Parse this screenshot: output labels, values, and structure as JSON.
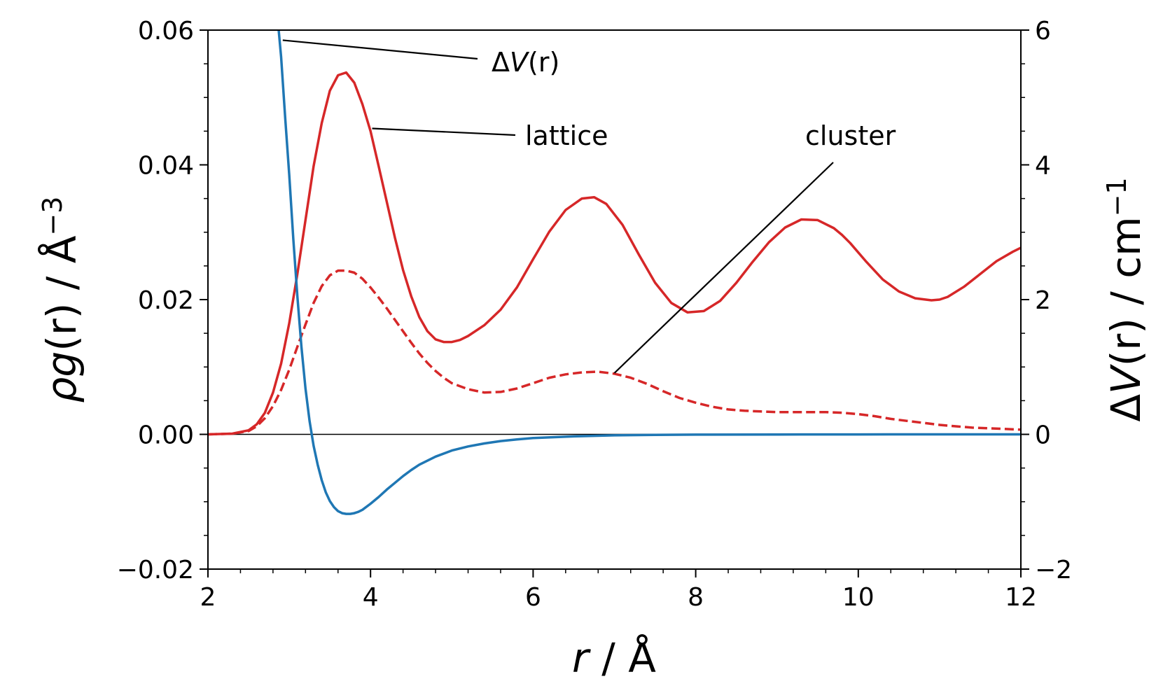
{
  "chart_data": {
    "type": "line",
    "title": "",
    "x_axis": {
      "label_var": "r",
      "label_unit": " / Å",
      "range": [
        2,
        12
      ],
      "ticks": [
        2,
        4,
        6,
        8,
        10,
        12
      ],
      "tick_labels": [
        "2",
        "4",
        "6",
        "8",
        "10",
        "12"
      ]
    },
    "y_left_axis": {
      "label_rho": "ρ",
      "label_g": "g",
      "label_r": "(r)",
      "label_unit": " / Å",
      "label_sup": "−3",
      "range": [
        -0.02,
        0.06
      ],
      "ticks": [
        -0.02,
        0.0,
        0.02,
        0.04,
        0.06
      ],
      "tick_labels": [
        "−0.02",
        "0.00",
        "0.02",
        "0.04",
        "0.06"
      ]
    },
    "y_right_axis": {
      "label_delta": "Δ",
      "label_v": "V",
      "label_r": "(r)",
      "label_unit": " / cm",
      "label_sup": "−1",
      "range": [
        -2,
        6
      ],
      "ticks": [
        -2,
        0,
        2,
        4,
        6
      ],
      "tick_labels": [
        "−2",
        "0",
        "2",
        "4",
        "6"
      ]
    },
    "grid": false,
    "zero_line": true,
    "series": [
      {
        "name": "lattice",
        "axis": "left",
        "style": "solid",
        "color": "#d62728",
        "x": [
          2.0,
          2.3,
          2.5,
          2.6,
          2.7,
          2.8,
          2.9,
          3.0,
          3.1,
          3.2,
          3.3,
          3.4,
          3.5,
          3.6,
          3.7,
          3.8,
          3.9,
          4.0,
          4.1,
          4.2,
          4.3,
          4.4,
          4.5,
          4.6,
          4.7,
          4.8,
          4.9,
          5.0,
          5.1,
          5.2,
          5.4,
          5.6,
          5.8,
          6.0,
          6.2,
          6.4,
          6.6,
          6.75,
          6.9,
          7.1,
          7.3,
          7.5,
          7.7,
          7.9,
          8.1,
          8.3,
          8.5,
          8.7,
          8.9,
          9.1,
          9.3,
          9.5,
          9.7,
          9.8,
          9.9,
          10.1,
          10.3,
          10.5,
          10.7,
          10.9,
          11.0,
          11.1,
          11.3,
          11.5,
          11.7,
          11.9,
          12.0
        ],
        "y": [
          0.0,
          0.0001,
          0.0006,
          0.0015,
          0.0032,
          0.0062,
          0.0105,
          0.0165,
          0.0238,
          0.0318,
          0.0398,
          0.0462,
          0.051,
          0.0533,
          0.0537,
          0.0522,
          0.049,
          0.045,
          0.0398,
          0.0345,
          0.0292,
          0.0244,
          0.0205,
          0.0174,
          0.0153,
          0.0141,
          0.0137,
          0.0137,
          0.014,
          0.0146,
          0.0162,
          0.0185,
          0.0218,
          0.026,
          0.0301,
          0.0333,
          0.035,
          0.0352,
          0.0342,
          0.0311,
          0.0267,
          0.0225,
          0.0195,
          0.0181,
          0.0183,
          0.0198,
          0.0225,
          0.0256,
          0.0285,
          0.0307,
          0.0319,
          0.0318,
          0.0306,
          0.0296,
          0.0284,
          0.0256,
          0.023,
          0.0212,
          0.0202,
          0.0199,
          0.02,
          0.0204,
          0.0219,
          0.0238,
          0.0257,
          0.0271,
          0.0277
        ]
      },
      {
        "name": "cluster",
        "axis": "left",
        "style": "dashed",
        "color": "#d62728",
        "x": [
          2.0,
          2.3,
          2.5,
          2.6,
          2.7,
          2.8,
          2.9,
          3.0,
          3.1,
          3.2,
          3.3,
          3.4,
          3.5,
          3.6,
          3.7,
          3.8,
          3.9,
          4.0,
          4.1,
          4.2,
          4.3,
          4.4,
          4.5,
          4.6,
          4.7,
          4.8,
          4.9,
          5.0,
          5.2,
          5.4,
          5.6,
          5.8,
          6.0,
          6.2,
          6.4,
          6.6,
          6.8,
          7.0,
          7.2,
          7.4,
          7.6,
          7.8,
          8.0,
          8.2,
          8.4,
          8.6,
          8.8,
          9.0,
          9.2,
          9.4,
          9.6,
          9.8,
          10.0,
          10.2,
          10.4,
          10.6,
          10.8,
          11.0,
          11.2,
          11.4,
          11.6,
          11.8,
          12.0
        ],
        "y": [
          0.0,
          0.0001,
          0.0005,
          0.0012,
          0.0024,
          0.0042,
          0.0066,
          0.0096,
          0.013,
          0.0163,
          0.0195,
          0.022,
          0.0236,
          0.0243,
          0.0243,
          0.024,
          0.0231,
          0.0218,
          0.0203,
          0.0187,
          0.017,
          0.0153,
          0.0136,
          0.012,
          0.0106,
          0.0094,
          0.0084,
          0.0076,
          0.0067,
          0.0062,
          0.0063,
          0.0068,
          0.0076,
          0.0084,
          0.0089,
          0.0092,
          0.0093,
          0.009,
          0.0084,
          0.0075,
          0.0064,
          0.0054,
          0.0047,
          0.0041,
          0.0037,
          0.0035,
          0.0034,
          0.0033,
          0.0033,
          0.0033,
          0.0033,
          0.0032,
          0.003,
          0.0027,
          0.0023,
          0.002,
          0.0017,
          0.0014,
          0.0012,
          0.001,
          0.0009,
          0.0008,
          0.0007
        ]
      },
      {
        "name": "ΔV(r)",
        "axis": "right",
        "style": "solid",
        "color": "#1f77b4",
        "x": [
          2.87,
          2.9,
          2.95,
          3.0,
          3.05,
          3.1,
          3.15,
          3.2,
          3.25,
          3.3,
          3.35,
          3.4,
          3.45,
          3.5,
          3.55,
          3.6,
          3.65,
          3.7,
          3.75,
          3.8,
          3.85,
          3.9,
          4.0,
          4.1,
          4.2,
          4.3,
          4.4,
          4.5,
          4.6,
          4.8,
          5.0,
          5.2,
          5.4,
          5.6,
          5.8,
          6.0,
          6.5,
          7.0,
          7.5,
          8.0,
          9.0,
          10.0,
          11.0,
          12.0
        ],
        "y": [
          6.0,
          5.6,
          4.7,
          3.85,
          2.9,
          2.05,
          1.3,
          0.68,
          0.2,
          -0.17,
          -0.45,
          -0.68,
          -0.86,
          -0.99,
          -1.08,
          -1.14,
          -1.17,
          -1.18,
          -1.18,
          -1.17,
          -1.15,
          -1.12,
          -1.03,
          -0.93,
          -0.82,
          -0.72,
          -0.62,
          -0.53,
          -0.45,
          -0.33,
          -0.24,
          -0.18,
          -0.135,
          -0.1,
          -0.075,
          -0.055,
          -0.03,
          -0.015,
          -0.008,
          -0.004,
          -0.002,
          -0.001,
          0.0,
          0.0
        ]
      }
    ],
    "annotations": [
      {
        "text_delta": "Δ",
        "text_v": "V",
        "text_r": "(r)",
        "target_series": "ΔV(r)",
        "target": [
          2.92,
          5.85
        ]
      },
      {
        "text": "lattice",
        "target_series": "lattice",
        "target": [
          4.02,
          0.0454
        ]
      },
      {
        "text": "cluster",
        "target_series": "cluster",
        "target": [
          7.0,
          0.0091
        ]
      }
    ]
  }
}
